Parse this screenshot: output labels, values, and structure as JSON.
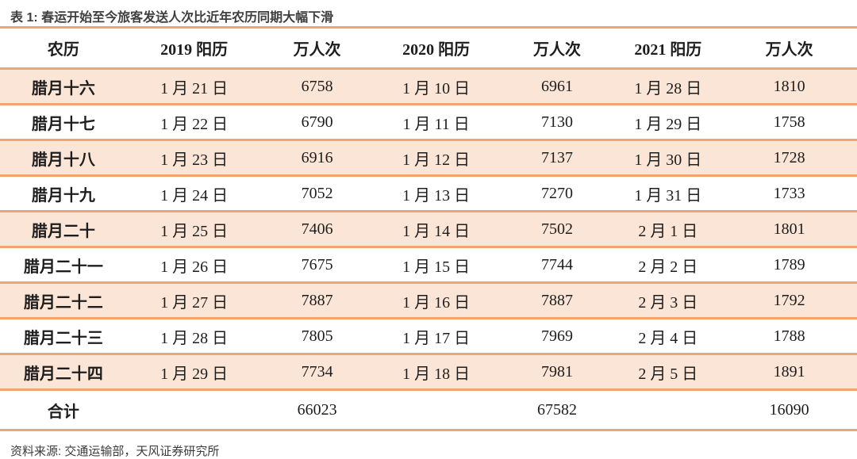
{
  "table": {
    "title": "表 1: 春运开始至今旅客发送人次比近年农历同期大幅下滑",
    "columns": [
      "农历",
      "2019 阳历",
      "万人次",
      "2020 阳历",
      "万人次",
      "2021 阳历",
      "万人次"
    ],
    "rows": [
      [
        "腊月十六",
        "1 月 21 日",
        "6758",
        "1 月 10 日",
        "6961",
        "1 月 28 日",
        "1810"
      ],
      [
        "腊月十七",
        "1 月 22 日",
        "6790",
        "1 月 11 日",
        "7130",
        "1 月 29 日",
        "1758"
      ],
      [
        "腊月十八",
        "1 月 23 日",
        "6916",
        "1 月 12 日",
        "7137",
        "1 月 30 日",
        "1728"
      ],
      [
        "腊月十九",
        "1 月 24 日",
        "7052",
        "1 月 13 日",
        "7270",
        "1 月 31 日",
        "1733"
      ],
      [
        "腊月二十",
        "1 月 25 日",
        "7406",
        "1 月 14 日",
        "7502",
        "2 月 1 日",
        "1801"
      ],
      [
        "腊月二十一",
        "1 月 26 日",
        "7675",
        "1 月 15 日",
        "7744",
        "2 月 2 日",
        "1789"
      ],
      [
        "腊月二十二",
        "1 月 27 日",
        "7887",
        "1 月 16 日",
        "7887",
        "2 月 3 日",
        "1792"
      ],
      [
        "腊月二十三",
        "1 月 28 日",
        "7805",
        "1 月 17 日",
        "7969",
        "2 月 4 日",
        "1788"
      ],
      [
        "腊月二十四",
        "1 月 29 日",
        "7734",
        "1 月 18 日",
        "7981",
        "2 月 5 日",
        "1891"
      ]
    ],
    "total_row": [
      "合计",
      "",
      "66023",
      "",
      "67582",
      "",
      "16090"
    ],
    "source": "资料来源: 交通运输部，天风证券研究所"
  },
  "colors": {
    "accent_line": "#f0a571",
    "row_highlight": "#fbe5d6",
    "title_text": "#3f3f3f",
    "body_text": "#1d1d1d",
    "source_text": "#3c3c3c"
  }
}
